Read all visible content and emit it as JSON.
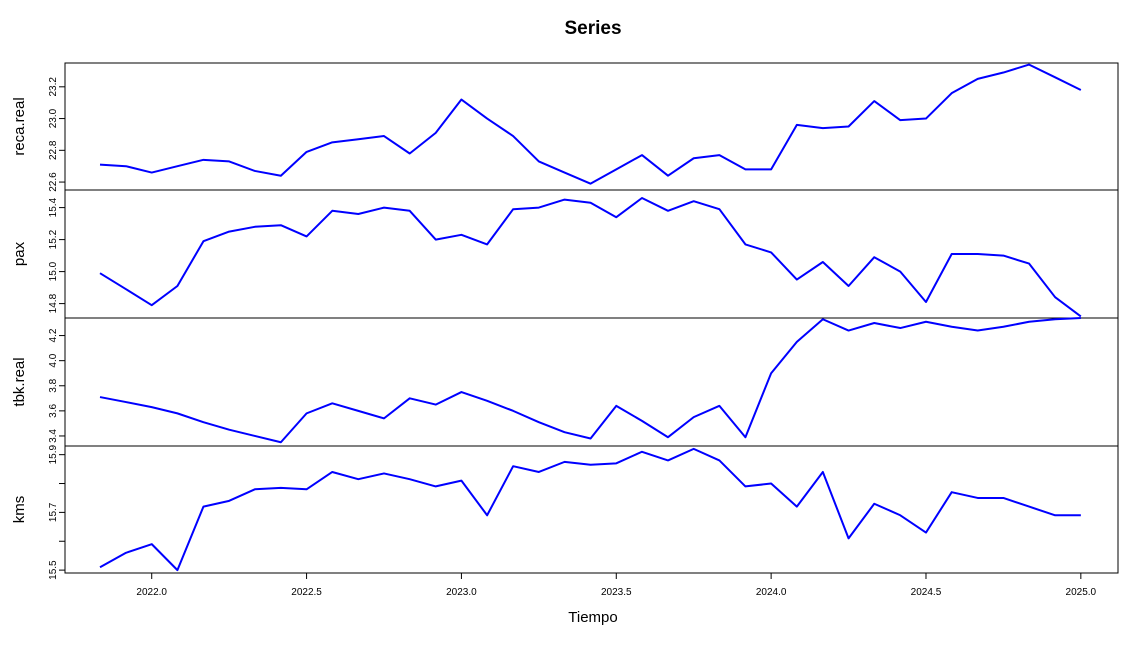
{
  "chart_data": {
    "type": "line",
    "title": "Series",
    "xlabel": "Tiempo",
    "line_color": "#0000ff",
    "x": [
      2021.833,
      2021.917,
      2022.0,
      2022.083,
      2022.167,
      2022.25,
      2022.333,
      2022.417,
      2022.5,
      2022.583,
      2022.667,
      2022.75,
      2022.833,
      2022.917,
      2023.0,
      2023.083,
      2023.167,
      2023.25,
      2023.333,
      2023.417,
      2023.5,
      2023.583,
      2023.667,
      2023.75,
      2023.833,
      2023.917,
      2024.0,
      2024.083,
      2024.167,
      2024.25,
      2024.333,
      2024.417,
      2024.5,
      2024.583,
      2024.667,
      2024.75,
      2024.833,
      2024.917,
      2025.0
    ],
    "xlim": [
      2021.72,
      2025.12
    ],
    "xticks": [
      "2022.0",
      "2022.5",
      "2023.0",
      "2023.5",
      "2024.0",
      "2024.5",
      "2025.0"
    ],
    "xtick_values": [
      2022.0,
      2022.5,
      2023.0,
      2023.5,
      2024.0,
      2024.5,
      2025.0
    ],
    "panels": [
      {
        "name": "reca.real",
        "ylim": [
          22.55,
          23.35
        ],
        "yticks": [
          "22.6",
          "22.8",
          "23.0",
          "23.2"
        ],
        "ytick_values": [
          22.6,
          22.8,
          23.0,
          23.2
        ],
        "values": [
          22.71,
          22.7,
          22.66,
          22.7,
          22.74,
          22.73,
          22.67,
          22.64,
          22.79,
          22.85,
          22.87,
          22.89,
          22.78,
          22.91,
          23.12,
          23.0,
          22.89,
          22.73,
          22.66,
          22.59,
          22.68,
          22.77,
          22.64,
          22.75,
          22.77,
          22.68,
          22.68,
          22.96,
          22.94,
          22.95,
          23.11,
          22.99,
          23.0,
          23.16,
          23.25,
          23.29,
          23.34,
          23.26,
          23.18
        ]
      },
      {
        "name": "pax",
        "ylim": [
          14.71,
          15.51
        ],
        "yticks": [
          "14.8",
          "15.0",
          "15.2",
          "15.4"
        ],
        "ytick_values": [
          14.8,
          15.0,
          15.2,
          15.4
        ],
        "values": [
          14.99,
          14.89,
          14.79,
          14.91,
          15.19,
          15.25,
          15.28,
          15.29,
          15.22,
          15.38,
          15.36,
          15.4,
          15.38,
          15.2,
          15.23,
          15.17,
          15.39,
          15.4,
          15.45,
          15.43,
          15.34,
          15.46,
          15.38,
          15.44,
          15.39,
          15.17,
          15.12,
          14.95,
          15.06,
          14.91,
          15.09,
          15.0,
          14.81,
          15.11,
          15.11,
          15.1,
          15.05,
          14.84,
          14.72
        ]
      },
      {
        "name": "tbk.real",
        "ylim": [
          3.32,
          4.34
        ],
        "yticks": [
          "3.4",
          "3.6",
          "3.8",
          "4.0",
          "4.2"
        ],
        "ytick_values": [
          3.4,
          3.6,
          3.8,
          4.0,
          4.2
        ],
        "values": [
          3.71,
          3.67,
          3.63,
          3.58,
          3.51,
          3.45,
          3.4,
          3.35,
          3.58,
          3.66,
          3.6,
          3.54,
          3.7,
          3.65,
          3.75,
          3.68,
          3.6,
          3.51,
          3.43,
          3.38,
          3.64,
          3.52,
          3.39,
          3.55,
          3.64,
          3.39,
          3.9,
          4.15,
          4.33,
          4.24,
          4.3,
          4.26,
          4.31,
          4.27,
          4.24,
          4.27,
          4.31,
          4.33,
          4.34
        ]
      },
      {
        "name": "kms",
        "ylim": [
          15.49,
          15.93
        ],
        "yticks": [
          "15.5",
          "15.7",
          "15.9"
        ],
        "ytick_values": [
          15.5,
          15.7,
          15.9
        ],
        "minor_tick_values": [
          15.6,
          15.8
        ],
        "values": [
          15.51,
          15.56,
          15.59,
          15.5,
          15.72,
          15.74,
          15.78,
          15.785,
          15.78,
          15.84,
          15.815,
          15.835,
          15.815,
          15.79,
          15.81,
          15.69,
          15.86,
          15.84,
          15.875,
          15.865,
          15.87,
          15.91,
          15.88,
          15.92,
          15.88,
          15.79,
          15.8,
          15.72,
          15.84,
          15.61,
          15.73,
          15.69,
          15.63,
          15.77,
          15.75,
          15.75,
          15.72,
          15.69,
          15.69
        ]
      }
    ]
  }
}
